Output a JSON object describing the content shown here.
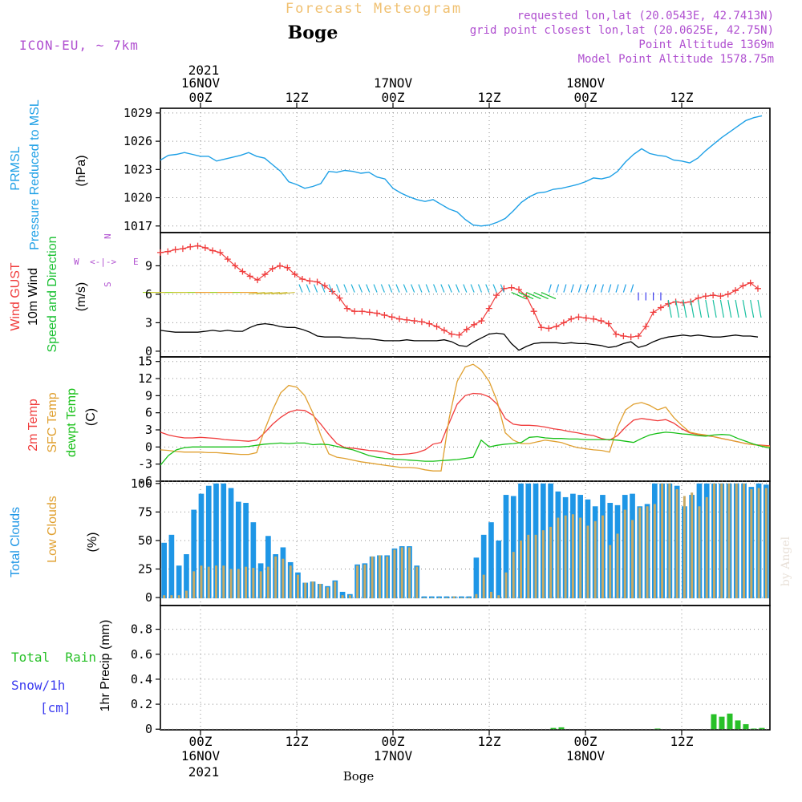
{
  "header": {
    "title": "Forecast Meteogram",
    "location": "Boge",
    "model": "ICON-EU, ~ 7km",
    "requested": "requested lon,lat (20.0543E, 42.7413N)",
    "grid_point": "grid point closest lon,lat (20.0625E, 42.75N)",
    "point_altitude": "Point Altitude 1369m",
    "model_altitude": "Model Point Altitude 1578.75m",
    "footer_location": "Boge",
    "credit": "by Angel"
  },
  "colors": {
    "pressure": "#1ea0e6",
    "gust": "#f03c3c",
    "wind": "#000000",
    "wind_dir": "#18c030",
    "temp2m": "#f03c3c",
    "sfc": "#e0a030",
    "dew": "#18c018",
    "total_cloud": "#1e96e6",
    "low_cloud": "#c8aa64",
    "rain": "#28c028",
    "snow": "#3c3cf0",
    "label_purple": "#b050d0",
    "title_orange": "#f0c070"
  },
  "axis": {
    "top_year": "2021",
    "bottom_year": "2021",
    "top_ticks": [
      {
        "h": 0,
        "time": "00Z",
        "date": "16NOV"
      },
      {
        "h": 12,
        "time": "12Z",
        "date": ""
      },
      {
        "h": 24,
        "time": "00Z",
        "date": "17NOV"
      },
      {
        "h": 36,
        "time": "12Z",
        "date": ""
      },
      {
        "h": 48,
        "time": "00Z",
        "date": "18NOV"
      },
      {
        "h": 60,
        "time": "12Z",
        "date": ""
      }
    ],
    "bottom_ticks": [
      {
        "h": 0,
        "time": "00Z",
        "date": "16NOV"
      },
      {
        "h": 12,
        "time": "12Z",
        "date": ""
      },
      {
        "h": 24,
        "time": "00Z",
        "date": "17NOV"
      },
      {
        "h": 36,
        "time": "12Z",
        "date": ""
      },
      {
        "h": 48,
        "time": "00Z",
        "date": "18NOV"
      },
      {
        "h": 60,
        "time": "12Z",
        "date": ""
      }
    ],
    "xlim_hours": [
      -5,
      71
    ]
  },
  "labels": {
    "pressure": {
      "line1": "PRMSL",
      "line2": "Pressure Reduced to MSL",
      "unit": "(hPa)"
    },
    "wind": {
      "gust": "Wind GUST",
      "wind10": "10m Wind",
      "speed": "Speed and Direction",
      "unit": "(m/s)",
      "compass": {
        "w": "W",
        "e": "E",
        "n": "N",
        "s": "S",
        "arrows": "<-|->"
      }
    },
    "temp": {
      "t2m": "2m Temp",
      "sfc": "SFC Temp",
      "dew": "dewpt Temp",
      "unit": "(C)"
    },
    "clouds": {
      "total": "Total Clouds",
      "low": "Low Clouds",
      "unit": "(%)"
    },
    "precip": {
      "rain": "Total  Rain",
      "snow": "Snow/1h",
      "snow_unit": "[cm]",
      "axis": "1hr Precip (mm)"
    }
  },
  "chart_data": [
    {
      "type": "line",
      "name": "pressure",
      "ylabel": "(hPa)",
      "ylim": [
        1016.3,
        1029.5
      ],
      "yticks": [
        1017,
        1020,
        1023,
        1026,
        1029
      ],
      "x": [
        -5,
        -4,
        -3,
        -2,
        -1,
        0,
        1,
        2,
        3,
        4,
        5,
        6,
        7,
        8,
        9,
        10,
        11,
        12,
        13,
        14,
        15,
        16,
        17,
        18,
        19,
        20,
        21,
        22,
        23,
        24,
        25,
        26,
        27,
        28,
        29,
        30,
        31,
        32,
        33,
        34,
        35,
        36,
        37,
        38,
        39,
        40,
        41,
        42,
        43,
        44,
        45,
        46,
        47,
        48,
        49,
        50,
        51,
        52,
        53,
        54,
        55,
        56,
        57,
        58,
        59,
        60,
        61,
        62,
        63,
        64,
        65,
        66,
        67,
        68,
        69,
        70
      ],
      "values": [
        1024.0,
        1024.5,
        1024.6,
        1024.8,
        1024.6,
        1024.4,
        1024.4,
        1023.9,
        1024.1,
        1024.3,
        1024.5,
        1024.8,
        1024.4,
        1024.2,
        1023.5,
        1022.8,
        1021.7,
        1021.4,
        1021.0,
        1021.2,
        1021.5,
        1022.8,
        1022.7,
        1022.9,
        1022.8,
        1022.6,
        1022.7,
        1022.2,
        1022.0,
        1021.0,
        1020.5,
        1020.1,
        1019.8,
        1019.6,
        1019.8,
        1019.3,
        1018.8,
        1018.5,
        1017.7,
        1017.1,
        1017.0,
        1017.1,
        1017.4,
        1017.8,
        1018.6,
        1019.5,
        1020.1,
        1020.5,
        1020.6,
        1020.9,
        1021.0,
        1021.2,
        1021.4,
        1021.7,
        1022.1,
        1022.0,
        1022.2,
        1022.8,
        1023.8,
        1024.6,
        1025.2,
        1024.7,
        1024.5,
        1024.4,
        1024.0,
        1023.9,
        1023.7,
        1024.2,
        1025.0,
        1025.7,
        1026.4,
        1027.0,
        1027.6,
        1028.2,
        1028.5,
        1028.7
      ]
    },
    {
      "type": "line",
      "name": "wind",
      "ylabel": "(m/s)",
      "ylim": [
        -0.6,
        12.5
      ],
      "yticks": [
        0,
        3,
        6,
        9
      ],
      "gust": [
        10.4,
        10.5,
        10.7,
        10.8,
        11.0,
        11.1,
        10.9,
        10.6,
        10.4,
        9.7,
        9.0,
        8.4,
        7.9,
        7.5,
        8.1,
        8.7,
        9.0,
        8.8,
        8.1,
        7.6,
        7.4,
        7.3,
        6.9,
        6.3,
        5.6,
        4.5,
        4.2,
        4.2,
        4.1,
        4.0,
        3.8,
        3.6,
        3.4,
        3.3,
        3.2,
        3.1,
        2.9,
        2.6,
        2.2,
        1.8,
        1.7,
        2.3,
        2.8,
        3.2,
        4.5,
        5.9,
        6.6,
        6.7,
        6.5,
        5.8,
        4.2,
        2.5,
        2.4,
        2.6,
        3.0,
        3.4,
        3.6,
        3.5,
        3.4,
        3.2,
        2.9,
        1.8,
        1.6,
        1.5,
        1.6,
        2.6,
        4.1,
        4.6,
        5.0,
        5.2,
        5.1,
        5.2,
        5.6,
        5.8,
        5.9,
        5.8,
        6.0,
        6.4,
        6.9,
        7.2,
        6.6
      ],
      "speed": [
        2.2,
        2.1,
        2.0,
        2.0,
        2.0,
        2.0,
        2.1,
        2.2,
        2.1,
        2.2,
        2.1,
        2.1,
        2.5,
        2.8,
        2.9,
        2.8,
        2.6,
        2.5,
        2.5,
        2.3,
        2.0,
        1.6,
        1.5,
        1.5,
        1.5,
        1.4,
        1.4,
        1.3,
        1.3,
        1.2,
        1.1,
        1.1,
        1.1,
        1.2,
        1.1,
        1.1,
        1.1,
        1.1,
        1.2,
        1.0,
        0.6,
        0.5,
        1.0,
        1.4,
        1.8,
        1.9,
        1.8,
        0.8,
        0.1,
        0.5,
        0.8,
        0.9,
        0.9,
        0.9,
        0.8,
        0.9,
        0.8,
        0.8,
        0.7,
        0.6,
        0.4,
        0.5,
        0.8,
        1.0,
        0.4,
        0.6,
        1.0,
        1.3,
        1.5,
        1.6,
        1.7,
        1.6,
        1.7,
        1.6,
        1.5,
        1.5,
        1.6,
        1.7,
        1.6,
        1.6,
        1.5
      ],
      "gust_color": "#f03c3c",
      "speed_color": "#000000"
    },
    {
      "type": "line",
      "name": "temperature",
      "ylabel": "(C)",
      "ylim": [
        -6,
        15.8
      ],
      "yticks": [
        -6,
        -3,
        0,
        3,
        6,
        9,
        12,
        15
      ],
      "x": [
        -5,
        -4,
        -3,
        -2,
        -1,
        0,
        1,
        2,
        3,
        4,
        5,
        6,
        7,
        8,
        9,
        10,
        11,
        12,
        13,
        14,
        15,
        16,
        17,
        18,
        19,
        20,
        21,
        22,
        23,
        24,
        25,
        26,
        27,
        28,
        29,
        30,
        31,
        32,
        33,
        34,
        35,
        36,
        37,
        38,
        39,
        40,
        41,
        42,
        43,
        44,
        45,
        46,
        47,
        48,
        49,
        50,
        51,
        52,
        53,
        54,
        55,
        56,
        57,
        58,
        59,
        60,
        61,
        62,
        63,
        64,
        65,
        66,
        67,
        68,
        69,
        70,
        71
      ],
      "series": [
        {
          "name": "2m Temp",
          "color": "#f03c3c",
          "values": [
            2.6,
            2.1,
            1.8,
            1.6,
            1.6,
            1.7,
            1.6,
            1.5,
            1.3,
            1.2,
            1.1,
            1.0,
            1.2,
            2.5,
            4.0,
            5.2,
            6.1,
            6.5,
            6.4,
            5.6,
            4.0,
            2.2,
            0.6,
            -0.1,
            -0.2,
            -0.4,
            -0.6,
            -0.7,
            -0.9,
            -1.3,
            -1.3,
            -1.2,
            -1.0,
            -0.5,
            0.5,
            0.8,
            4.2,
            7.5,
            9.0,
            9.4,
            9.3,
            8.8,
            7.5,
            5.0,
            4.0,
            3.8,
            3.8,
            3.7,
            3.5,
            3.2,
            3.0,
            2.7,
            2.5,
            2.2,
            2.0,
            1.5,
            1.2,
            2.0,
            3.5,
            4.7,
            5.0,
            4.8,
            4.6,
            4.8,
            4.2,
            3.2,
            2.5,
            2.2,
            2.0,
            1.8,
            1.5,
            1.2,
            0.9,
            0.6,
            0.4,
            0.3,
            0.2
          ]
        },
        {
          "name": "SFC Temp",
          "color": "#e0a030",
          "values": [
            -0.5,
            -0.6,
            -0.8,
            -0.9,
            -0.9,
            -0.9,
            -1.0,
            -1.0,
            -1.1,
            -1.2,
            -1.3,
            -1.3,
            -1.0,
            3.0,
            6.5,
            9.5,
            10.8,
            10.5,
            9.0,
            6.0,
            2.0,
            -1.2,
            -1.8,
            -2.0,
            -2.3,
            -2.6,
            -2.8,
            -3.0,
            -3.2,
            -3.4,
            -3.6,
            -3.6,
            -3.7,
            -4.0,
            -4.2,
            -4.2,
            5.0,
            11.5,
            14.0,
            14.5,
            13.5,
            11.5,
            8.0,
            2.5,
            1.2,
            0.6,
            0.6,
            0.9,
            1.2,
            1.0,
            0.8,
            0.3,
            -0.1,
            -0.3,
            -0.5,
            -0.6,
            -0.9,
            3.5,
            6.5,
            7.5,
            7.8,
            7.3,
            6.5,
            7.0,
            5.2,
            3.8,
            2.6,
            2.3,
            2.1,
            1.8,
            1.5,
            1.2,
            0.9,
            0.6,
            0.4,
            0.2,
            0.1
          ]
        },
        {
          "name": "dewpt Temp",
          "color": "#18c018",
          "values": [
            -3.2,
            -1.5,
            -0.5,
            -0.1,
            0.0,
            0.0,
            0.0,
            0.0,
            0.0,
            0.0,
            0.0,
            0.1,
            0.3,
            0.5,
            0.6,
            0.7,
            0.6,
            0.7,
            0.7,
            0.4,
            0.5,
            0.4,
            0.1,
            -0.2,
            -0.5,
            -1.0,
            -1.5,
            -1.8,
            -2.0,
            -2.1,
            -2.2,
            -2.3,
            -2.4,
            -2.5,
            -2.5,
            -2.4,
            -2.3,
            -2.2,
            -2.0,
            -1.8,
            1.2,
            0.0,
            0.3,
            0.5,
            0.6,
            0.8,
            1.7,
            1.8,
            1.6,
            1.5,
            1.5,
            1.4,
            1.4,
            1.3,
            1.3,
            1.3,
            1.3,
            1.2,
            1.0,
            0.8,
            1.5,
            2.1,
            2.4,
            2.6,
            2.5,
            2.3,
            2.2,
            2.0,
            1.9,
            2.1,
            2.2,
            2.1,
            1.5,
            1.0,
            0.5,
            0.1,
            -0.2
          ]
        }
      ]
    },
    {
      "type": "bar",
      "name": "clouds",
      "ylabel": "(%)",
      "ylim": [
        -7,
        102
      ],
      "yticks": [
        0,
        25,
        50,
        75,
        100
      ],
      "series": [
        {
          "name": "Total Clouds",
          "color": "#1e96e6",
          "values": [
            48,
            55,
            28,
            38,
            77,
            91,
            98,
            100,
            100,
            96,
            84,
            83,
            66,
            30,
            54,
            38,
            44,
            31,
            22,
            13,
            14,
            12,
            10,
            15,
            5,
            3,
            29,
            30,
            36,
            37,
            37,
            43,
            45,
            45,
            28,
            1,
            1,
            1,
            1,
            1,
            1,
            1,
            35,
            55,
            66,
            50,
            90,
            89,
            100,
            100,
            100,
            100,
            100,
            93,
            88,
            91,
            90,
            86,
            80,
            90,
            83,
            81,
            90,
            91,
            80,
            82,
            100,
            100,
            100,
            98,
            80,
            90,
            100,
            100,
            100,
            100,
            100,
            100,
            100,
            97,
            100,
            99
          ]
        },
        {
          "name": "Low Clouds",
          "color": "#c8aa64",
          "values": [
            2,
            2,
            2,
            6,
            23,
            28,
            27,
            28,
            28,
            25,
            25,
            27,
            26,
            23,
            27,
            36,
            34,
            28,
            20,
            13,
            14,
            12,
            9,
            14,
            2,
            2,
            28,
            29,
            36,
            37,
            36,
            42,
            44,
            44,
            27,
            0,
            0,
            0,
            0,
            1,
            0,
            0,
            3,
            20,
            5,
            2,
            22,
            40,
            50,
            55,
            55,
            59,
            62,
            70,
            72,
            73,
            70,
            63,
            67,
            72,
            46,
            56,
            77,
            68,
            79,
            80,
            82,
            100,
            100,
            95,
            89,
            92,
            80,
            88,
            100,
            100,
            100,
            100,
            100,
            95,
            96,
            96
          ]
        }
      ]
    },
    {
      "type": "bar",
      "name": "precipitation",
      "ylabel": "1hr Precip (mm)",
      "ylim": [
        -0.005,
        0.99
      ],
      "yticks": [
        0,
        0.2,
        0.4,
        0.6,
        0.8
      ],
      "rain_hours": [
        44,
        45,
        57,
        64,
        65,
        66,
        67,
        68,
        69,
        70
      ],
      "rain_values": [
        0.01,
        0.015,
        0.005,
        0.12,
        0.1,
        0.125,
        0.07,
        0.04,
        0.005,
        0.01
      ],
      "color": "#28c028"
    }
  ]
}
